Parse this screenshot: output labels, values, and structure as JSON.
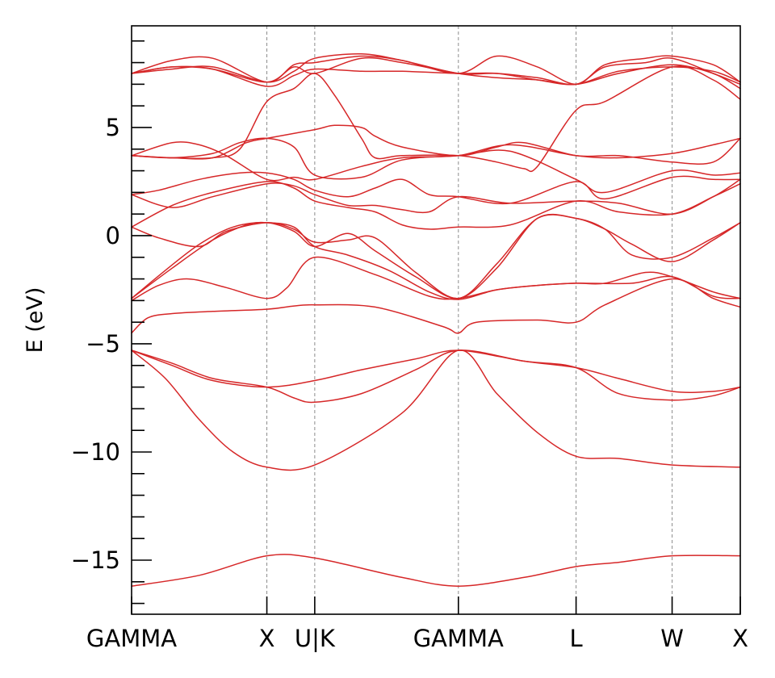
{
  "chart_data": {
    "type": "line",
    "title": "",
    "xlabel": "",
    "ylabel": "E (eV)",
    "ylim": [
      -17.5,
      9.7
    ],
    "xlim": [
      0,
      4.5
    ],
    "y_major_ticks": [
      5,
      0,
      -5,
      -10,
      -15
    ],
    "y_tick_labels": [
      "5",
      "0",
      "−5",
      "−10",
      "−15"
    ],
    "y_minor_step": 1,
    "x_ticks": [
      {
        "label": "GAMMA",
        "x": 0
      },
      {
        "label": "X",
        "x": 1.0
      },
      {
        "label": "U|K",
        "x": 1.354
      },
      {
        "label": "GAMMA",
        "x": 2.416
      },
      {
        "label": "L",
        "x": 3.286
      },
      {
        "label": "W",
        "x": 3.996
      },
      {
        "label": "X",
        "x": 4.5
      }
    ],
    "grid": "vertical dashed at high-symmetry points",
    "line_color": "#d62728",
    "bands": [
      {
        "x": [
          0,
          0.5,
          1.0,
          1.354,
          2.0,
          2.416,
          2.9,
          3.286,
          3.6,
          3.996,
          4.5
        ],
        "y": [
          -16.2,
          -15.7,
          -14.8,
          -14.9,
          -15.8,
          -16.2,
          -15.8,
          -15.3,
          -15.1,
          -14.8,
          -14.8
        ]
      },
      {
        "x": [
          0,
          0.25,
          0.5,
          0.75,
          1.0,
          1.354,
          2.0,
          2.416,
          2.7,
          3.0,
          3.286,
          3.6,
          3.996,
          4.5
        ],
        "y": [
          -5.3,
          -6.6,
          -8.5,
          -10.0,
          -10.7,
          -10.6,
          -8.2,
          -5.3,
          -7.3,
          -9.1,
          -10.2,
          -10.3,
          -10.6,
          -10.7
        ]
      },
      {
        "x": [
          0,
          0.3,
          0.6,
          1.0,
          1.2,
          1.354,
          1.7,
          2.1,
          2.416,
          2.9,
          3.286,
          3.6,
          3.996,
          4.3,
          4.5
        ],
        "y": [
          -5.3,
          -5.9,
          -6.6,
          -7.0,
          -7.5,
          -7.7,
          -7.3,
          -6.2,
          -5.3,
          -5.8,
          -6.1,
          -7.3,
          -7.6,
          -7.4,
          -7.0
        ]
      },
      {
        "x": [
          0,
          0.3,
          0.6,
          1.0,
          1.354,
          1.7,
          2.1,
          2.416,
          2.9,
          3.286,
          3.6,
          3.996,
          4.3,
          4.5
        ],
        "y": [
          -5.3,
          -6.0,
          -6.7,
          -7.0,
          -6.7,
          -6.2,
          -5.7,
          -5.3,
          -5.8,
          -6.1,
          -6.6,
          -7.2,
          -7.2,
          -7.0
        ]
      },
      {
        "x": [
          0,
          0.12,
          0.3,
          0.6,
          1.0,
          1.2,
          1.354,
          1.8,
          2.3,
          2.416,
          2.55,
          3.0,
          3.286,
          3.5,
          3.996,
          4.3,
          4.5
        ],
        "y": [
          -4.5,
          -3.8,
          -3.6,
          -3.5,
          -3.4,
          -3.25,
          -3.2,
          -3.3,
          -4.2,
          -4.5,
          -4.0,
          -3.9,
          -4.0,
          -3.2,
          -2.0,
          -2.9,
          -3.3
        ]
      },
      {
        "x": [
          0,
          0.2,
          0.42,
          0.7,
          1.0,
          1.15,
          1.354,
          1.8,
          2.2,
          2.416,
          2.7,
          3.0,
          3.286,
          3.7,
          3.996,
          4.3,
          4.5
        ],
        "y": [
          -3.0,
          -2.3,
          -2.0,
          -2.4,
          -2.9,
          -2.4,
          -1.0,
          -1.8,
          -2.8,
          -2.9,
          -2.5,
          -2.3,
          -2.2,
          -2.2,
          -1.9,
          -2.8,
          -2.9
        ]
      },
      {
        "x": [
          0,
          0.3,
          0.6,
          0.85,
          1.0,
          1.2,
          1.354,
          1.6,
          1.9,
          2.2,
          2.416,
          2.7,
          3.0,
          3.286,
          3.5,
          3.8,
          3.996,
          4.3,
          4.5
        ],
        "y": [
          -2.9,
          -1.5,
          -0.2,
          0.5,
          0.6,
          0.4,
          -0.5,
          -0.9,
          -1.6,
          -2.6,
          -2.95,
          -2.5,
          -2.3,
          -2.2,
          -2.2,
          -1.7,
          -1.9,
          -2.6,
          -2.9
        ]
      },
      {
        "x": [
          0,
          0.25,
          0.5,
          0.75,
          1.0,
          1.2,
          1.354,
          1.6,
          1.8,
          2.1,
          2.416,
          2.7,
          3.0,
          3.286,
          3.5,
          3.7,
          3.996,
          4.3,
          4.5
        ],
        "y": [
          -2.9,
          -1.6,
          -0.4,
          0.4,
          0.6,
          0.2,
          -0.5,
          0.1,
          -0.7,
          -1.9,
          -2.9,
          -1.5,
          0.8,
          0.8,
          0.3,
          -0.4,
          -1.2,
          -0.2,
          0.6
        ]
      },
      {
        "x": [
          0,
          0.2,
          0.5,
          0.7,
          1.0,
          1.2,
          1.354,
          1.6,
          1.8,
          2.1,
          2.416,
          2.7,
          3.0,
          3.286,
          3.5,
          3.7,
          3.996,
          4.3,
          4.5
        ],
        "y": [
          0.4,
          -0.1,
          -0.5,
          0.2,
          0.6,
          0.3,
          -0.3,
          -0.2,
          -0.1,
          -1.7,
          -2.9,
          -1.3,
          0.8,
          0.8,
          0.3,
          -0.9,
          -1.0,
          -0.1,
          0.6
        ]
      },
      {
        "x": [
          0,
          0.3,
          0.6,
          1.0,
          1.2,
          1.354,
          1.6,
          1.8,
          2.0,
          2.2,
          2.416,
          2.8,
          3.286,
          3.6,
          3.996,
          4.3,
          4.5
        ],
        "y": [
          0.4,
          1.4,
          2.0,
          2.5,
          2.2,
          1.6,
          1.3,
          1.1,
          0.5,
          0.3,
          0.4,
          0.5,
          1.6,
          1.1,
          1.0,
          1.8,
          2.4
        ]
      },
      {
        "x": [
          0,
          0.3,
          0.6,
          1.0,
          1.2,
          1.354,
          1.6,
          1.8,
          2.0,
          2.2,
          2.416,
          2.8,
          3.286,
          3.6,
          3.996,
          4.3,
          4.5
        ],
        "y": [
          1.9,
          1.3,
          1.8,
          2.4,
          2.3,
          1.9,
          1.4,
          1.4,
          1.2,
          1.1,
          1.8,
          1.5,
          1.6,
          1.5,
          1.0,
          1.8,
          2.6
        ]
      },
      {
        "x": [
          0,
          0.2,
          0.5,
          0.8,
          1.0,
          1.2,
          1.354,
          1.6,
          1.8,
          2.0,
          2.2,
          2.416,
          2.8,
          3.286,
          3.5,
          3.996,
          4.3,
          4.5
        ],
        "y": [
          1.9,
          2.1,
          2.6,
          2.9,
          2.9,
          2.6,
          2.1,
          1.8,
          2.2,
          2.6,
          1.9,
          1.8,
          1.5,
          2.5,
          1.7,
          2.7,
          2.6,
          2.6
        ]
      },
      {
        "x": [
          0,
          0.3,
          0.6,
          0.8,
          1.0,
          1.2,
          1.354,
          1.7,
          2.0,
          2.416,
          2.8,
          3.286,
          3.5,
          3.996,
          4.3,
          4.5
        ],
        "y": [
          3.7,
          3.6,
          3.8,
          4.3,
          4.5,
          4.1,
          2.8,
          2.7,
          3.5,
          3.7,
          3.9,
          2.6,
          2.0,
          3.0,
          2.8,
          2.9
        ]
      },
      {
        "x": [
          0,
          0.3,
          0.5,
          0.7,
          1.0,
          1.2,
          1.354,
          1.7,
          2.0,
          2.416,
          2.8,
          3.286,
          3.6,
          3.996,
          4.3,
          4.5
        ],
        "y": [
          3.7,
          4.3,
          4.2,
          3.7,
          2.6,
          2.7,
          2.6,
          3.2,
          3.6,
          3.7,
          4.2,
          3.7,
          3.6,
          3.8,
          4.2,
          4.5
        ]
      },
      {
        "x": [
          0,
          0.3,
          0.6,
          0.85,
          1.0,
          1.354,
          1.5,
          1.7,
          1.8,
          2.0,
          2.416,
          2.7,
          2.9,
          3.286,
          3.6,
          3.996,
          4.3,
          4.5
        ],
        "y": [
          3.7,
          3.6,
          3.6,
          4.3,
          4.5,
          4.9,
          5.1,
          5.0,
          4.6,
          4.1,
          3.7,
          4.1,
          4.3,
          3.7,
          3.7,
          3.4,
          3.4,
          4.5
        ]
      },
      {
        "x": [
          0,
          0.3,
          0.6,
          0.8,
          1.0,
          1.2,
          1.354,
          1.5,
          1.7,
          1.8,
          2.0,
          2.416,
          2.7,
          2.9,
          3.0,
          3.286,
          3.5,
          3.996,
          4.3,
          4.5
        ],
        "y": [
          3.7,
          3.6,
          3.6,
          4.0,
          6.2,
          6.8,
          7.5,
          6.5,
          4.5,
          3.6,
          3.7,
          3.7,
          3.4,
          3.1,
          3.2,
          5.8,
          6.2,
          7.8,
          7.2,
          6.3
        ]
      },
      {
        "x": [
          0,
          0.3,
          0.6,
          1.0,
          1.2,
          1.354,
          1.7,
          2.0,
          2.416,
          2.7,
          3.0,
          3.286,
          3.6,
          3.996,
          4.3,
          4.5
        ],
        "y": [
          7.5,
          7.8,
          7.7,
          7.1,
          7.8,
          7.5,
          8.2,
          8.0,
          7.5,
          7.3,
          7.2,
          7.0,
          7.5,
          7.9,
          7.5,
          6.8
        ]
      },
      {
        "x": [
          0,
          0.3,
          0.6,
          1.0,
          1.2,
          1.354,
          1.7,
          2.0,
          2.416,
          2.7,
          3.0,
          3.286,
          3.6,
          3.996,
          4.3,
          4.5
        ],
        "y": [
          7.5,
          7.8,
          7.7,
          6.9,
          7.4,
          7.7,
          7.6,
          7.6,
          7.5,
          7.5,
          7.2,
          7.0,
          7.6,
          7.8,
          7.6,
          7.1
        ]
      },
      {
        "x": [
          0,
          0.3,
          0.6,
          1.0,
          1.2,
          1.354,
          1.7,
          2.0,
          2.416,
          2.7,
          3.0,
          3.286,
          3.5,
          3.8,
          3.996,
          4.3,
          4.5
        ],
        "y": [
          7.5,
          8.1,
          8.2,
          7.1,
          7.9,
          8.0,
          8.3,
          8.1,
          7.5,
          8.3,
          7.8,
          7.0,
          7.9,
          8.2,
          8.3,
          7.9,
          7.1
        ]
      },
      {
        "x": [
          0,
          0.3,
          0.6,
          1.0,
          1.2,
          1.354,
          1.7,
          2.0,
          2.416,
          2.7,
          3.0,
          3.286,
          3.5,
          3.8,
          3.996,
          4.3,
          4.5
        ],
        "y": [
          7.5,
          7.7,
          7.8,
          7.1,
          7.6,
          8.2,
          8.4,
          8.1,
          7.5,
          7.5,
          7.3,
          7.0,
          7.8,
          8.0,
          8.2,
          7.5,
          7.0
        ]
      }
    ]
  }
}
